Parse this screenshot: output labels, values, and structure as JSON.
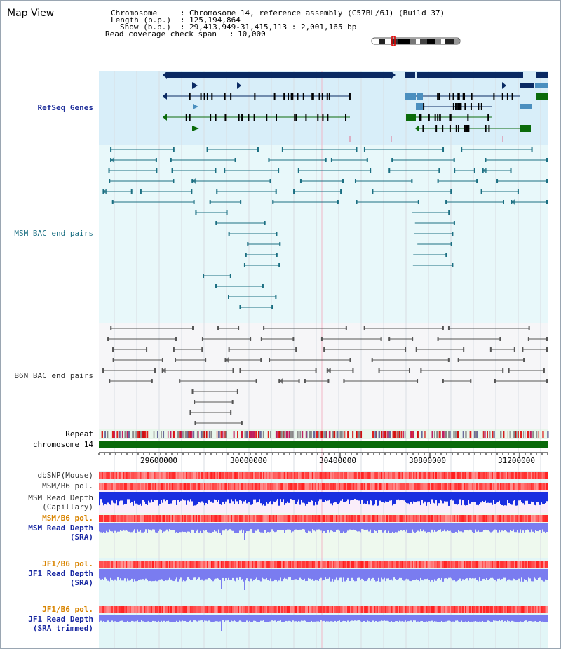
{
  "view": {
    "title": "Map View"
  },
  "header": {
    "chromosome_label": "Chromosome",
    "chromosome_value": "Chromosome 14, reference assembly (C57BL/6J) (Build 37)",
    "length_label": "Length (b.p.)",
    "length_value": "125,194,864",
    "show_label": "Show (b.p.)",
    "show_value": "29,413,949-31,415,113 : 2,001,165 bp",
    "coverage_label": "Read coverage check span",
    "coverage_value": "10,000"
  },
  "tracks": {
    "refseq": "RefSeq Genes",
    "msm_bac": "MSM BAC end pairs",
    "b6n_bac": "B6N BAC end pairs",
    "repeat": "Repeat",
    "chromosome": "chromosome 14",
    "dbsnp": "dbSNP(Mouse)",
    "msm_b6_pol_1": "MSM/B6 pol.",
    "msm_depth_cap_1": "MSM Read Depth",
    "msm_depth_cap_2": "(Capillary)",
    "msm_b6_pol_2": "MSM/B6 pol.",
    "msm_depth_sra_1": "MSM Read Depth",
    "msm_depth_sra_2": "(SRA)",
    "jf1_b6_pol_1": "JF1/B6 pol.",
    "jf1_depth_sra_1": "JF1 Read Depth",
    "jf1_depth_sra_2": "(SRA)",
    "jf1_b6_pol_2": "JF1/B6 pol.",
    "jf1_depth_trim_1": "JF1 Read Depth",
    "jf1_depth_trim_2": "(SRA trimmed)"
  },
  "axis": {
    "ticks": [
      "29600000",
      "30000000",
      "30400000",
      "30800000",
      "31200000"
    ]
  },
  "colors": {
    "refseq_bg": "#d8eef9",
    "msm_bg": "#e8f8fa",
    "b6n_bg": "#f6f6f8",
    "gene_dark": "#0a2a63",
    "gene_light": "#4b8fbf",
    "gene_green": "#0b6b0b",
    "msm_line": "#1b6f82",
    "b6n_line": "#555555",
    "chrom_bar": "#0a6a0a",
    "depth_blue": "#1a2fe0",
    "depth_lavender": "#7a7cf0"
  }
}
